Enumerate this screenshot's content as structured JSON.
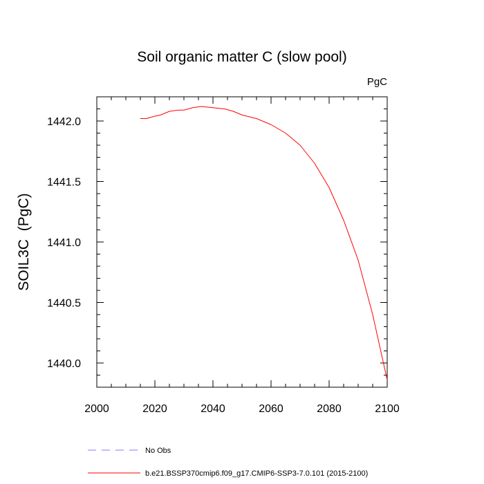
{
  "chart_data": {
    "type": "line",
    "title": "Soil organic matter C (slow pool)",
    "units_label": "PgC",
    "xlabel": "",
    "ylabel": "SOIL3C  (PgC)",
    "xlim": [
      2000,
      2100
    ],
    "ylim": [
      1439.8,
      1442.2
    ],
    "x_ticks": [
      2000,
      2020,
      2040,
      2060,
      2080,
      2100
    ],
    "x_tick_labels": [
      "2000",
      "2020",
      "2040",
      "2060",
      "2080",
      "2100"
    ],
    "y_ticks": [
      1440.0,
      1440.5,
      1441.0,
      1441.5,
      1442.0
    ],
    "y_tick_labels": [
      "1440.0",
      "1440.5",
      "1441.0",
      "1441.5",
      "1442.0"
    ],
    "series": [
      {
        "name": "b.e21.BSSP370cmip6.f09_g17.CMIP6-SSP3-7.0.101 (2015-2100)",
        "color": "#ff0000",
        "style": "solid",
        "x": [
          2015,
          2017,
          2020,
          2022,
          2025,
          2028,
          2030,
          2033,
          2036,
          2040,
          2044,
          2047,
          2050,
          2055,
          2060,
          2065,
          2070,
          2075,
          2080,
          2085,
          2090,
          2095,
          2100
        ],
        "y": [
          1442.02,
          1442.02,
          1442.04,
          1442.05,
          1442.08,
          1442.09,
          1442.09,
          1442.11,
          1442.12,
          1442.11,
          1442.1,
          1442.08,
          1442.05,
          1442.02,
          1441.97,
          1441.9,
          1441.8,
          1441.65,
          1441.45,
          1441.18,
          1440.85,
          1440.4,
          1439.86
        ]
      }
    ],
    "legend": [
      {
        "label": "No Obs",
        "color": "#7b7bff",
        "style": "dashed"
      },
      {
        "label": "b.e21.BSSP370cmip6.f09_g17.CMIP6-SSP3-7.0.101 (2015-2100)",
        "color": "#ff0000",
        "style": "solid"
      }
    ],
    "legend_position": "bottom"
  }
}
